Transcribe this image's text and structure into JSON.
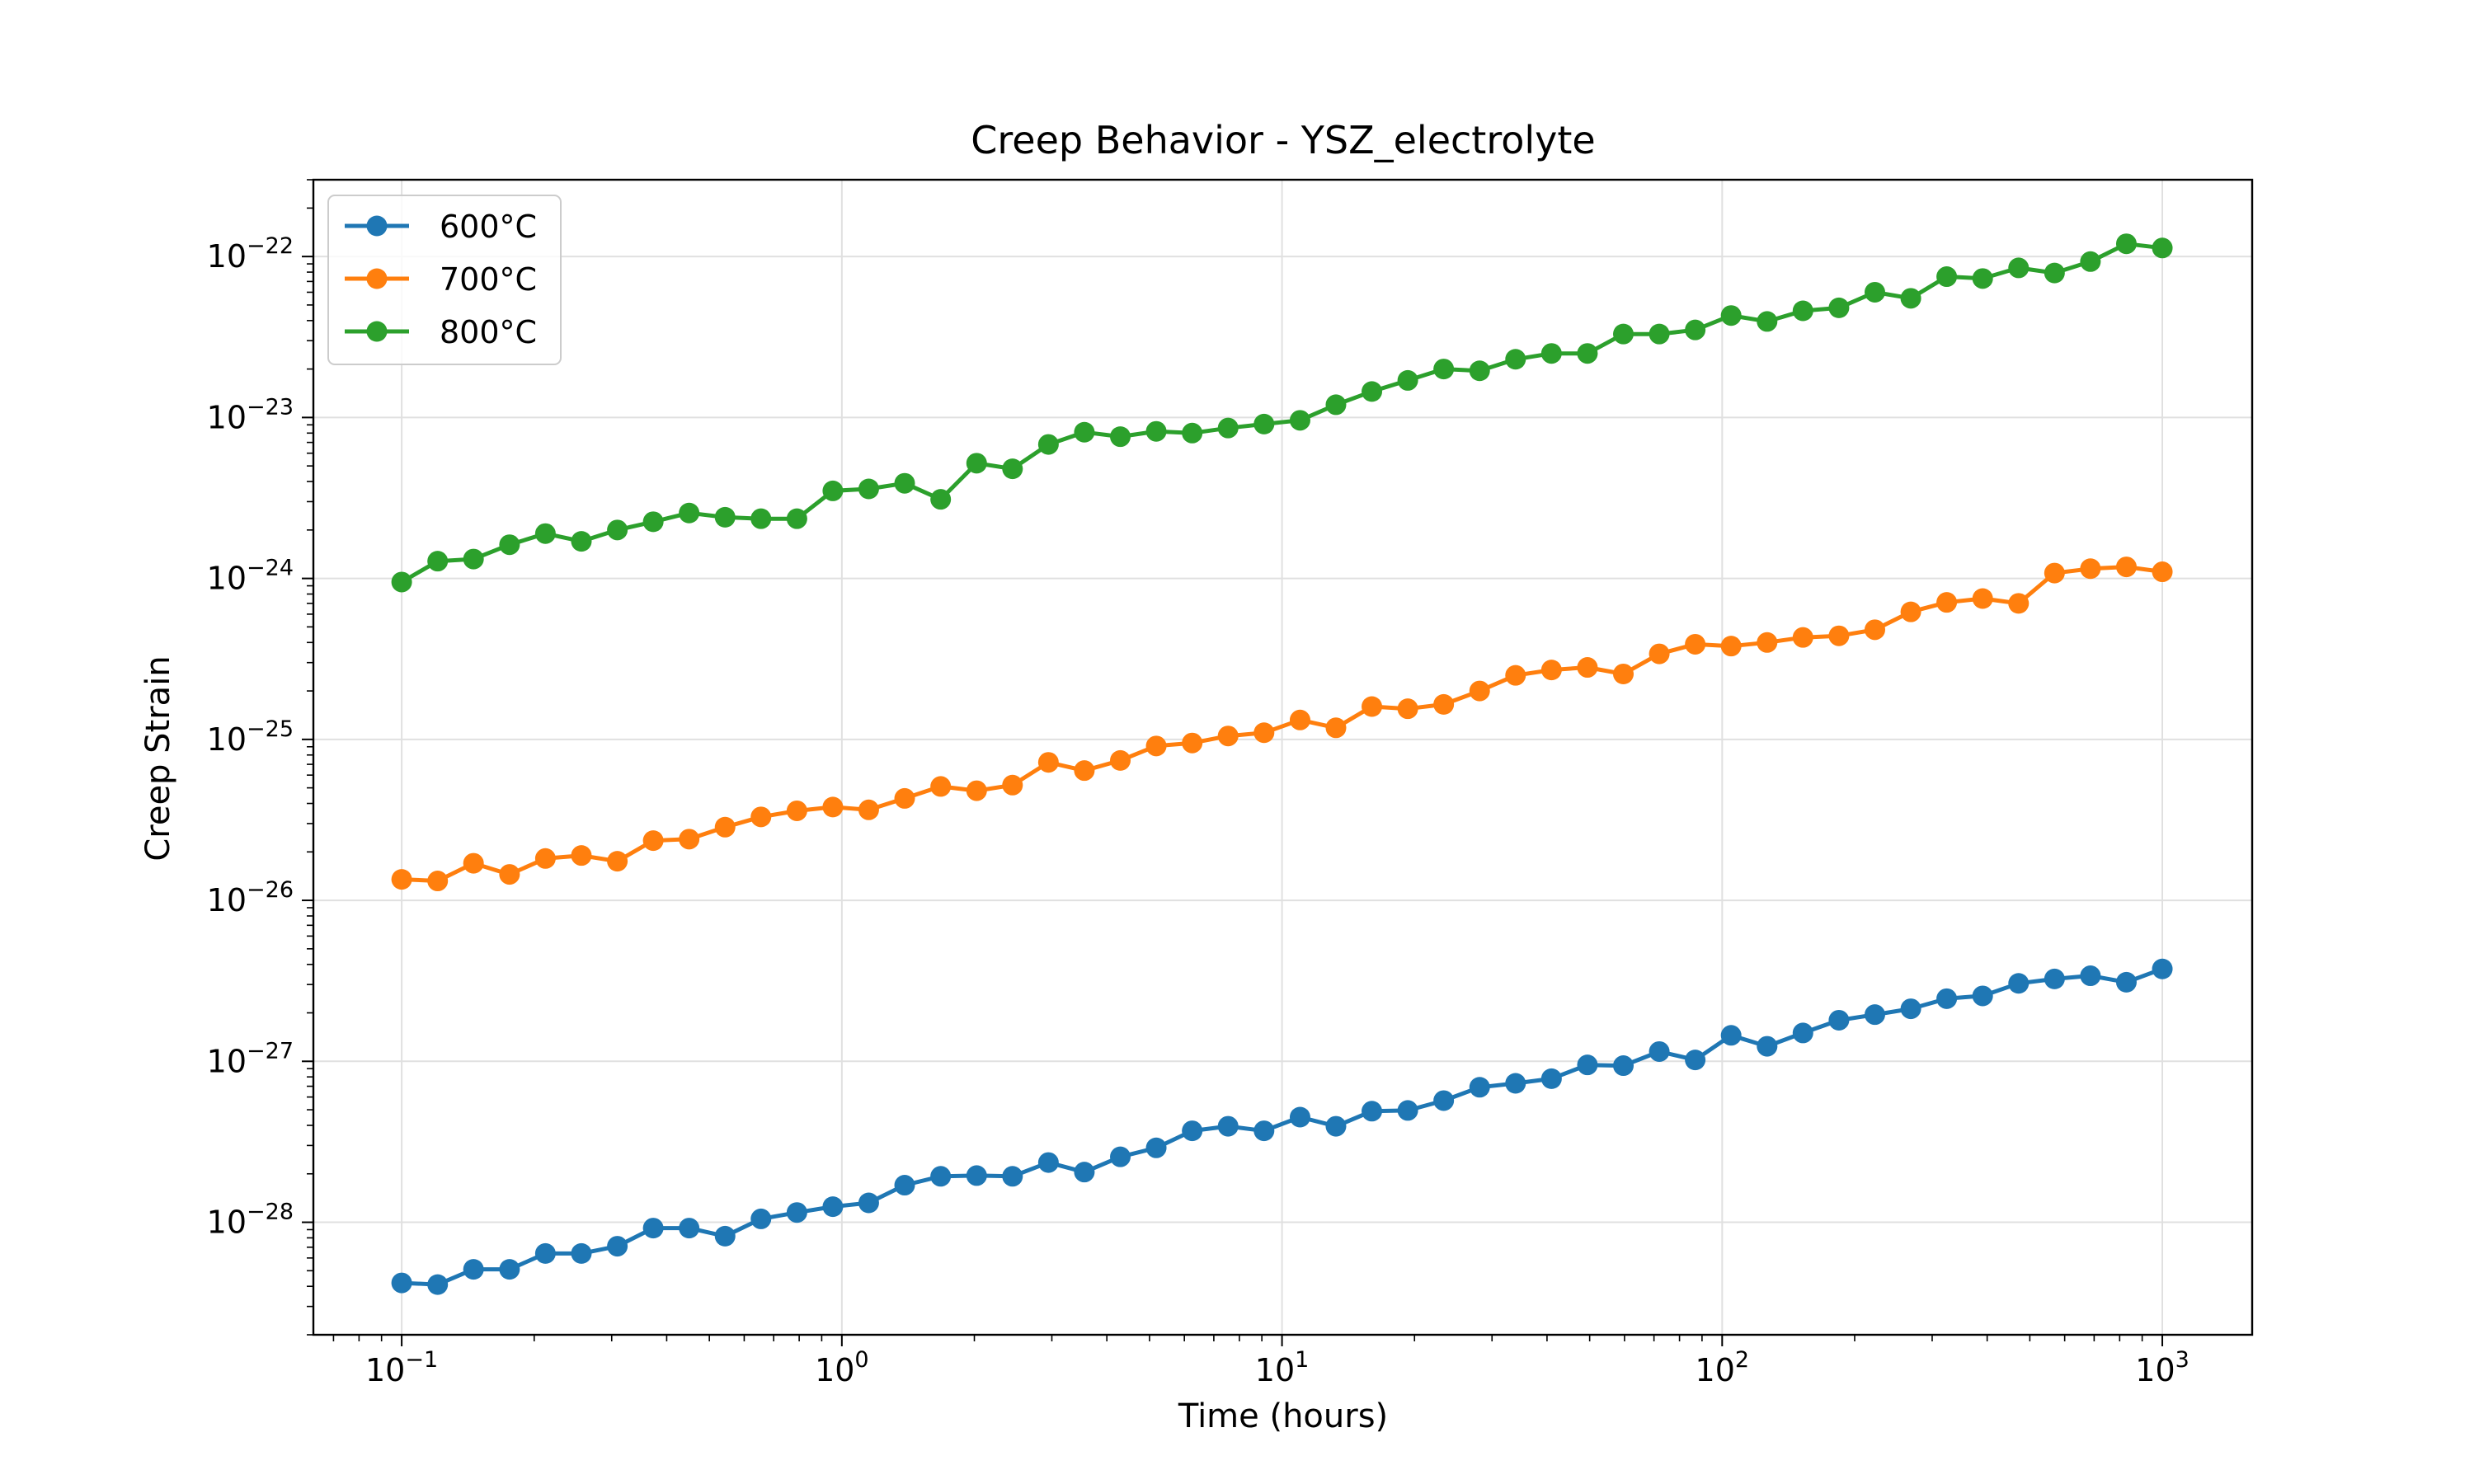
{
  "chart_data": {
    "type": "line",
    "title": "Creep Behavior - YSZ_electrolyte",
    "xlabel": "Time (hours)",
    "ylabel": "Creep Strain",
    "x_scale": "log",
    "y_scale": "log",
    "xlim": [
      0.063,
      1600
    ],
    "ylim": [
      2e-29,
      3e-22
    ],
    "grid": true,
    "legend_position": "upper-left",
    "x_ticks": [
      {
        "value": 0.1,
        "exp": "−1"
      },
      {
        "value": 1,
        "exp": "0"
      },
      {
        "value": 10,
        "exp": "1"
      },
      {
        "value": 100,
        "exp": "2"
      },
      {
        "value": 1000,
        "exp": "3"
      }
    ],
    "y_ticks": [
      {
        "value": 1e-28,
        "exp": "−28"
      },
      {
        "value": 1e-27,
        "exp": "−27"
      },
      {
        "value": 1e-26,
        "exp": "−26"
      },
      {
        "value": 1e-25,
        "exp": "−25"
      },
      {
        "value": 1e-24,
        "exp": "−24"
      },
      {
        "value": 1e-23,
        "exp": "−23"
      },
      {
        "value": 1e-22,
        "exp": "−22"
      }
    ],
    "x": [
      0.1,
      0.1207,
      0.1456,
      0.1758,
      0.2121,
      0.256,
      0.309,
      0.3728,
      0.4498,
      0.5429,
      0.655,
      0.7906,
      0.954,
      1.151,
      1.389,
      1.677,
      2.024,
      2.442,
      2.947,
      3.556,
      4.292,
      5.179,
      6.251,
      7.543,
      9.103,
      10.99,
      13.26,
      16.0,
      19.31,
      23.3,
      28.12,
      33.93,
      40.95,
      49.42,
      59.64,
      71.97,
      86.85,
      104.8,
      126.5,
      152.6,
      184.2,
      222.3,
      268.3,
      323.7,
      390.7,
      471.5,
      569.0,
      686.6,
      828.6,
      1000
    ],
    "series": [
      {
        "name": "600°C",
        "color": "#1f77b4",
        "values": [
          4.2e-29,
          4.1e-29,
          5.1e-29,
          5.1e-29,
          6.4e-29,
          6.4e-29,
          7.1e-29,
          9.2e-29,
          9.2e-29,
          8.2e-29,
          1.05e-28,
          1.15e-28,
          1.25e-28,
          1.32e-28,
          1.7e-28,
          1.93e-28,
          1.95e-28,
          1.93e-28,
          2.35e-28,
          2.05e-28,
          2.55e-28,
          2.9e-28,
          3.7e-28,
          3.95e-28,
          3.7e-28,
          4.5e-28,
          3.95e-28,
          4.9e-28,
          4.95e-28,
          5.7e-28,
          6.9e-28,
          7.3e-28,
          7.8e-28,
          9.5e-28,
          9.4e-28,
          1.15e-27,
          1.02e-27,
          1.45e-27,
          1.24e-27,
          1.5e-27,
          1.8e-27,
          1.95e-27,
          2.12e-27,
          2.45e-27,
          2.55e-27,
          3.05e-27,
          3.25e-27,
          3.4e-27,
          3.1e-27,
          3.75e-27
        ]
      },
      {
        "name": "700°C",
        "color": "#ff7f0e",
        "values": [
          1.35e-26,
          1.32e-26,
          1.7e-26,
          1.45e-26,
          1.82e-26,
          1.9e-26,
          1.75e-26,
          2.35e-26,
          2.4e-26,
          2.85e-26,
          3.3e-26,
          3.6e-26,
          3.8e-26,
          3.65e-26,
          4.3e-26,
          5.1e-26,
          4.8e-26,
          5.2e-26,
          7.2e-26,
          6.4e-26,
          7.4e-26,
          9.1e-26,
          9.5e-26,
          1.05e-25,
          1.1e-25,
          1.32e-25,
          1.18e-25,
          1.6e-25,
          1.55e-25,
          1.65e-25,
          2e-25,
          2.5e-25,
          2.7e-25,
          2.8e-25,
          2.55e-25,
          3.4e-25,
          3.9e-25,
          3.8e-25,
          4e-25,
          4.3e-25,
          4.4e-25,
          4.8e-25,
          6.2e-25,
          7.1e-25,
          7.5e-25,
          7e-25,
          1.08e-24,
          1.15e-24,
          1.18e-24,
          1.1e-24
        ]
      },
      {
        "name": "800°C",
        "color": "#2ca02c",
        "values": [
          9.5e-25,
          1.28e-24,
          1.32e-24,
          1.62e-24,
          1.9e-24,
          1.7e-24,
          2e-24,
          2.25e-24,
          2.55e-24,
          2.4e-24,
          2.35e-24,
          2.35e-24,
          3.5e-24,
          3.6e-24,
          3.9e-24,
          3.1e-24,
          5.2e-24,
          4.8e-24,
          6.8e-24,
          8.1e-24,
          7.6e-24,
          8.2e-24,
          8e-24,
          8.6e-24,
          9.1e-24,
          9.6e-24,
          1.2e-23,
          1.45e-23,
          1.7e-23,
          2e-23,
          1.95e-23,
          2.3e-23,
          2.5e-23,
          2.5e-23,
          3.3e-23,
          3.3e-23,
          3.5e-23,
          4.3e-23,
          3.95e-23,
          4.6e-23,
          4.8e-23,
          6e-23,
          5.5e-23,
          7.5e-23,
          7.3e-23,
          8.5e-23,
          7.9e-23,
          9.3e-23,
          1.2e-22,
          1.13e-22
        ]
      }
    ]
  }
}
